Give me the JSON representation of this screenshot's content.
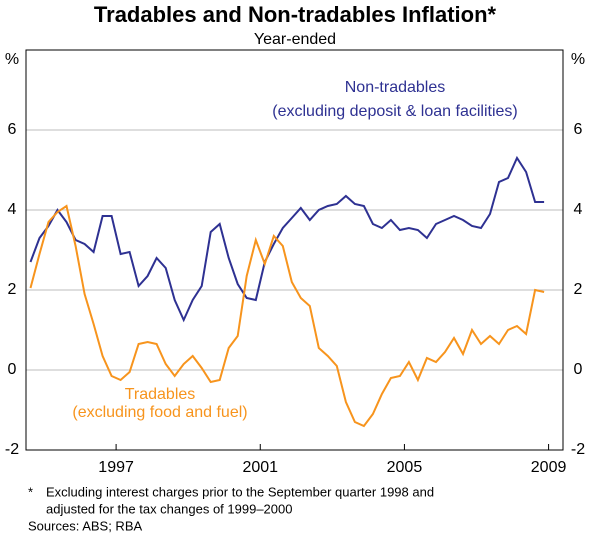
{
  "chart_data": {
    "type": "line",
    "title": "Tradables and Non-tradables Inflation*",
    "subtitle": "Year-ended",
    "y_unit": "%",
    "x": [
      1995.125,
      1995.375,
      1995.625,
      1995.875,
      1996.125,
      1996.375,
      1996.625,
      1996.875,
      1997.125,
      1997.375,
      1997.625,
      1997.875,
      1998.125,
      1998.375,
      1998.625,
      1998.875,
      1999.125,
      1999.375,
      1999.625,
      1999.875,
      2000.125,
      2000.375,
      2000.625,
      2000.875,
      2001.125,
      2001.375,
      2001.625,
      2001.875,
      2002.125,
      2002.375,
      2002.625,
      2002.875,
      2003.125,
      2003.375,
      2003.625,
      2003.875,
      2004.125,
      2004.375,
      2004.625,
      2004.875,
      2005.125,
      2005.375,
      2005.625,
      2005.875,
      2006.125,
      2006.375,
      2006.625,
      2006.875,
      2007.125,
      2007.375,
      2007.625,
      2007.875,
      2008.125,
      2008.375,
      2008.625,
      2008.875,
      2009.125,
      2009.375
    ],
    "series": [
      {
        "name": "Non-tradables",
        "note": "(excluding deposit & loan facilities)",
        "color": "#2e3192",
        "values": [
          2.7,
          3.3,
          3.6,
          4.0,
          3.7,
          3.25,
          3.15,
          2.95,
          3.85,
          3.85,
          2.9,
          2.95,
          2.1,
          2.35,
          2.8,
          2.55,
          1.75,
          1.25,
          1.75,
          2.1,
          3.45,
          3.65,
          2.8,
          2.15,
          1.8,
          1.75,
          2.7,
          3.15,
          3.55,
          3.8,
          4.05,
          3.75,
          4.0,
          4.1,
          4.15,
          4.35,
          4.15,
          4.1,
          3.65,
          3.55,
          3.75,
          3.5,
          3.55,
          3.5,
          3.3,
          3.65,
          3.75,
          3.85,
          3.75,
          3.6,
          3.55,
          3.9,
          4.7,
          4.8,
          5.3,
          4.95,
          4.2,
          4.2
        ]
      },
      {
        "name": "Tradables",
        "note": "(excluding food and fuel)",
        "color": "#f7941d",
        "values": [
          2.05,
          2.9,
          3.7,
          3.95,
          4.1,
          3.1,
          1.9,
          1.15,
          0.35,
          -0.15,
          -0.25,
          -0.05,
          0.65,
          0.7,
          0.65,
          0.15,
          -0.15,
          0.15,
          0.35,
          0.05,
          -0.3,
          -0.25,
          0.55,
          0.85,
          2.35,
          3.25,
          2.65,
          3.35,
          3.1,
          2.2,
          1.8,
          1.6,
          0.55,
          0.35,
          0.1,
          -0.8,
          -1.3,
          -1.4,
          -1.1,
          -0.6,
          -0.2,
          -0.15,
          0.2,
          -0.25,
          0.3,
          0.2,
          0.45,
          0.8,
          0.4,
          1.0,
          0.65,
          0.85,
          0.65,
          1.0,
          1.1,
          0.9,
          2.0,
          1.95
        ]
      }
    ],
    "xlim": [
      1995,
      2009.9
    ],
    "xticks": [
      {
        "value": 1997.5,
        "label": "1997"
      },
      {
        "value": 2001.5,
        "label": "2001"
      },
      {
        "value": 2005.5,
        "label": "2005"
      },
      {
        "value": 2009.5,
        "label": "2009"
      }
    ],
    "ylim": [
      -2,
      8
    ],
    "yticks": [
      -2,
      0,
      2,
      4,
      6
    ],
    "grid": true,
    "footnote_mark": "*",
    "footnote": [
      "Excluding interest charges prior to the September quarter 1998 and",
      "adjusted for the tax changes of 1999–2000"
    ],
    "sources": "Sources: ABS; RBA"
  }
}
